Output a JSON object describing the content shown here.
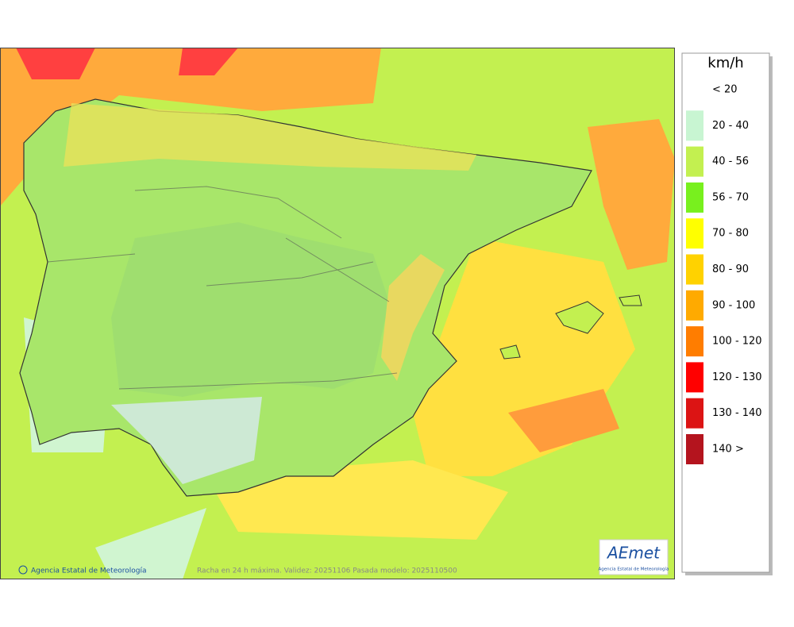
{
  "legend": {
    "title": "km/h",
    "items": [
      {
        "label": "< 20",
        "color": "#ffffff"
      },
      {
        "label": "20 - 40",
        "color": "#c8f5d2"
      },
      {
        "label": "40 - 56",
        "color": "#c3f050"
      },
      {
        "label": "56 - 70",
        "color": "#78f01e"
      },
      {
        "label": "70 - 80",
        "color": "#ffff00"
      },
      {
        "label": "80 - 90",
        "color": "#ffd200"
      },
      {
        "label": "90 - 100",
        "color": "#ffaa00"
      },
      {
        "label": "100 - 120",
        "color": "#ff7d00"
      },
      {
        "label": "120 - 130",
        "color": "#ff0000"
      },
      {
        "label": "130 - 140",
        "color": "#dc1414"
      },
      {
        "label": "140 >",
        "color": "#b4141e"
      }
    ]
  },
  "footer": {
    "credit": "Agencia Estatal de Meteorología",
    "caption": "Racha en 24 h máxima. Validez: 20251106 Pasada modelo: 2025110500"
  },
  "logo": {
    "text": "AEmet",
    "subtitle": "Agencia Estatal de Meteorología"
  }
}
